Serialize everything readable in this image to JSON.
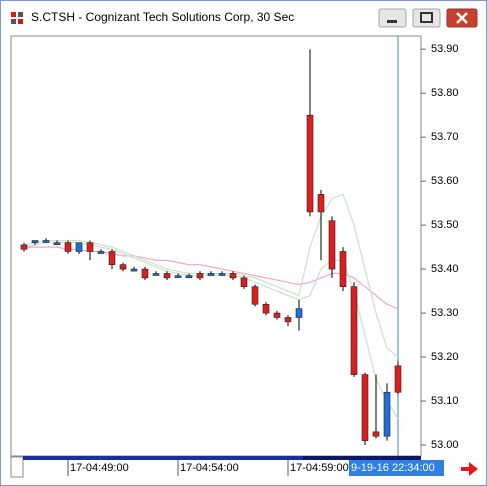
{
  "window": {
    "title": "S.CTSH - Cognizant Tech Solutions Corp, 30 Sec"
  },
  "chart_data": {
    "type": "candlestick",
    "categories": [
      null,
      null,
      null,
      null,
      "17-04:49:00",
      null,
      null,
      null,
      null,
      null,
      null,
      null,
      null,
      null,
      "17-04:54:00",
      null,
      null,
      null,
      null,
      null,
      null,
      null,
      null,
      null,
      "17-04:59:00",
      null,
      null,
      null,
      null,
      null,
      null,
      null,
      null,
      null,
      null
    ],
    "open": [
      53.455,
      53.46,
      53.465,
      53.46,
      53.46,
      53.44,
      53.46,
      53.44,
      53.44,
      53.41,
      53.4,
      53.4,
      53.39,
      53.39,
      53.385,
      53.385,
      53.39,
      53.39,
      53.39,
      53.39,
      53.38,
      53.36,
      53.32,
      53.3,
      53.29,
      53.29,
      53.75,
      53.57,
      53.51,
      53.44,
      53.36,
      53.16,
      53.03,
      53.02,
      53.18
    ],
    "high": [
      53.46,
      53.465,
      53.47,
      53.465,
      53.465,
      53.46,
      53.465,
      53.445,
      53.445,
      53.415,
      53.405,
      53.405,
      53.395,
      53.395,
      53.39,
      53.39,
      53.395,
      53.395,
      53.395,
      53.395,
      53.385,
      53.365,
      53.325,
      53.305,
      53.295,
      53.33,
      53.9,
      53.58,
      53.52,
      53.45,
      53.37,
      53.165,
      53.16,
      53.14,
      53.19
    ],
    "low": [
      53.44,
      53.455,
      53.46,
      53.455,
      53.435,
      53.435,
      53.42,
      53.435,
      53.4,
      53.395,
      53.395,
      53.375,
      53.385,
      53.375,
      53.38,
      53.38,
      53.375,
      53.385,
      53.385,
      53.375,
      53.355,
      53.315,
      53.295,
      53.285,
      53.27,
      53.26,
      53.52,
      53.42,
      53.38,
      53.35,
      53.155,
      53.0,
      53.015,
      53.01,
      53.115
    ],
    "close": [
      53.445,
      53.465,
      53.465,
      53.46,
      53.44,
      53.46,
      53.44,
      53.44,
      53.41,
      53.4,
      53.4,
      53.38,
      53.39,
      53.38,
      53.385,
      53.385,
      53.38,
      53.39,
      53.39,
      53.38,
      53.36,
      53.32,
      53.3,
      53.29,
      53.28,
      53.31,
      53.53,
      53.53,
      53.4,
      53.36,
      53.16,
      53.01,
      53.02,
      53.12,
      53.12
    ],
    "up_color": "#1f6fd6",
    "down_color": "#dc1e1e",
    "lines": [
      {
        "color": "#f2a6c8",
        "values": [
          53.45,
          53.45,
          53.45,
          53.45,
          53.445,
          53.445,
          53.44,
          53.44,
          53.435,
          53.43,
          53.43,
          53.425,
          53.42,
          53.42,
          53.415,
          53.41,
          53.41,
          53.405,
          53.4,
          53.395,
          53.39,
          53.385,
          53.38,
          53.375,
          53.37,
          53.365,
          53.37,
          53.38,
          53.39,
          53.39,
          53.38,
          53.36,
          53.34,
          53.32,
          53.31
        ]
      },
      {
        "color": "#c9e2c9",
        "values": [
          53.455,
          53.46,
          53.465,
          53.465,
          53.465,
          53.465,
          53.46,
          53.455,
          53.45,
          53.44,
          53.43,
          53.42,
          53.41,
          53.4,
          53.395,
          53.39,
          53.39,
          53.39,
          53.39,
          53.39,
          53.385,
          53.38,
          53.37,
          53.36,
          53.35,
          53.34,
          53.45,
          53.52,
          53.56,
          53.57,
          53.5,
          53.4,
          53.3,
          53.22,
          53.2
        ]
      },
      {
        "color": "#c9e2c9",
        "values": [
          53.45,
          53.455,
          53.46,
          53.46,
          53.46,
          53.46,
          53.455,
          53.45,
          53.445,
          53.435,
          53.425,
          53.415,
          53.405,
          53.395,
          53.39,
          53.385,
          53.385,
          53.385,
          53.385,
          53.385,
          53.38,
          53.37,
          53.36,
          53.35,
          53.34,
          53.33,
          53.34,
          53.4,
          53.42,
          53.42,
          53.35,
          53.25,
          53.15,
          53.1,
          53.06
        ]
      }
    ],
    "ylim": [
      52.975,
      53.93
    ],
    "yticks": [
      {
        "value": 53.0,
        "label": "53.00"
      },
      {
        "value": 53.1,
        "label": "53.10"
      },
      {
        "value": 53.2,
        "label": "53.20"
      },
      {
        "value": 53.3,
        "label": "53.30"
      },
      {
        "value": 53.4,
        "label": "53.40"
      },
      {
        "value": 53.5,
        "label": "53.50"
      },
      {
        "value": 53.6,
        "label": "53.60"
      },
      {
        "value": 53.7,
        "label": "53.70"
      },
      {
        "value": 53.8,
        "label": "53.80"
      },
      {
        "value": 53.9,
        "label": "53.90"
      }
    ],
    "cursor_label": "9-19-16 22:34:00"
  }
}
